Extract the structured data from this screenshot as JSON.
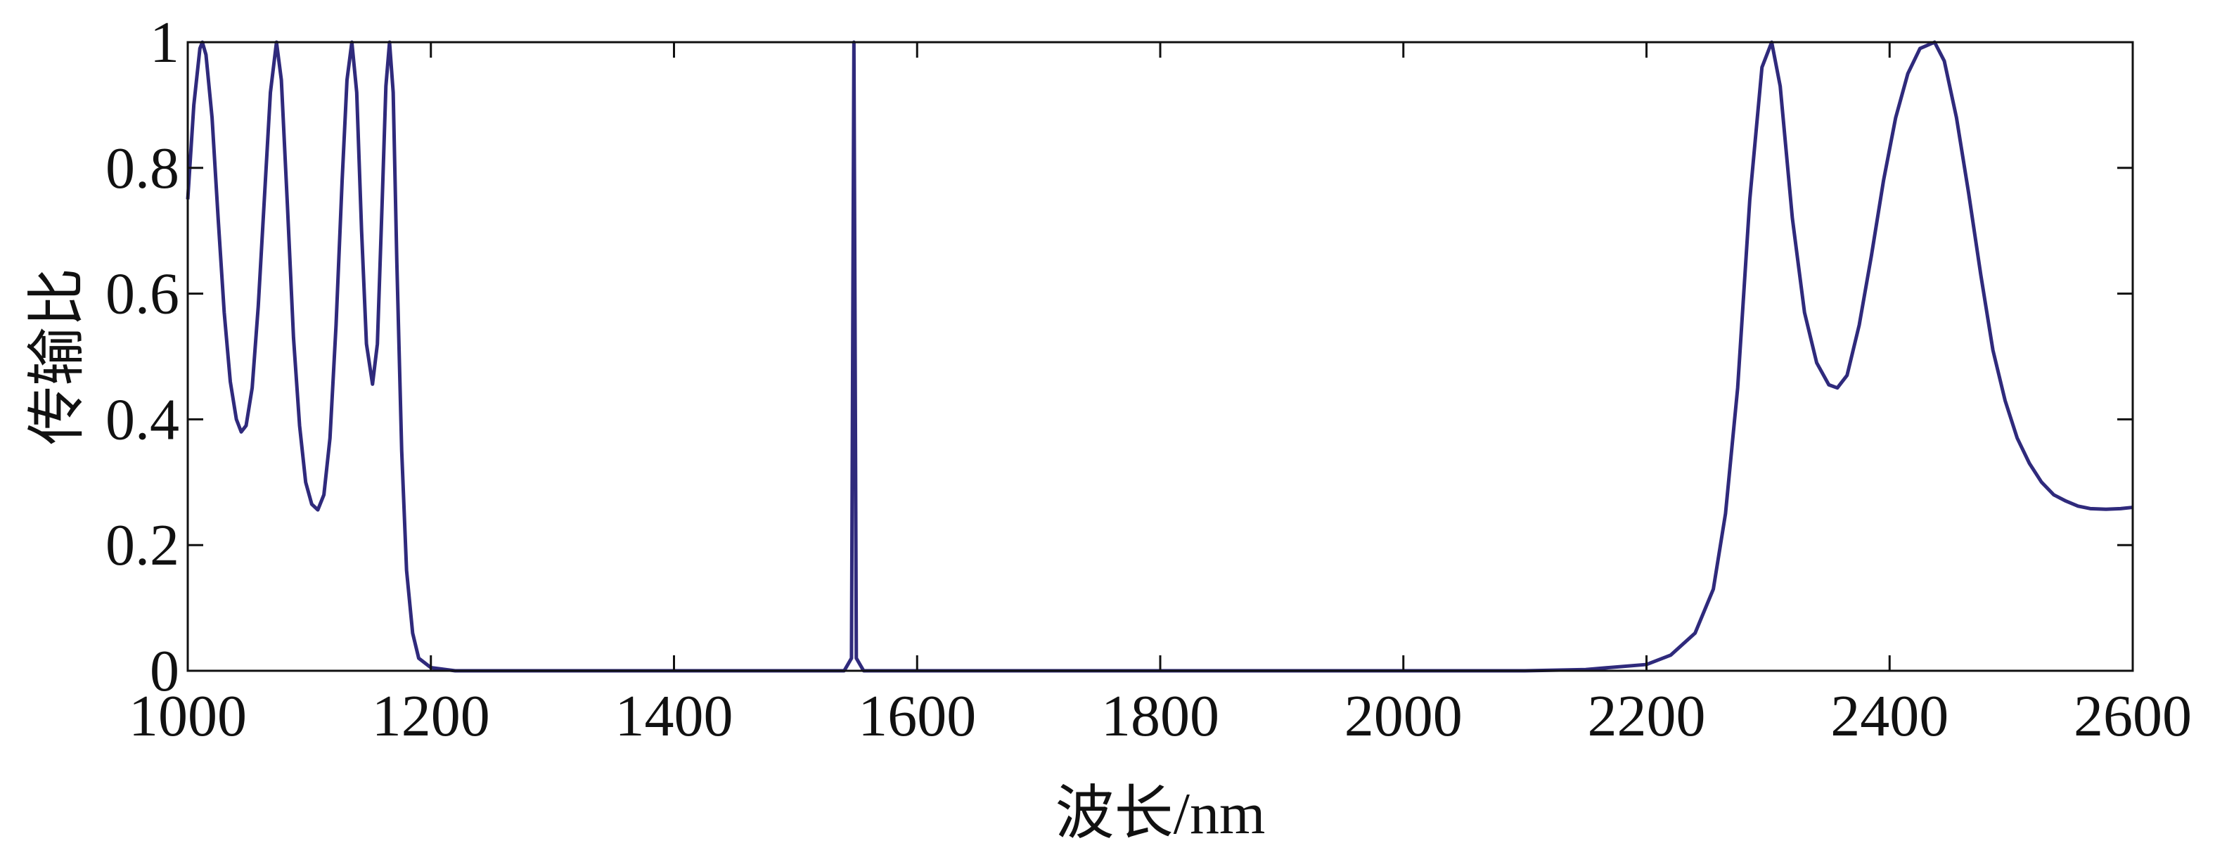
{
  "chart_data": {
    "type": "line",
    "xlabel": "波长/nm",
    "ylabel": "传输比",
    "xlim": [
      1000,
      2600
    ],
    "xticks": [
      1000,
      1200,
      1400,
      1600,
      1800,
      2000,
      2200,
      2400,
      2600
    ],
    "ylim": [
      0,
      1
    ],
    "yticks": [
      0,
      0.2,
      0.4,
      0.6,
      0.8,
      1
    ],
    "x": [
      1000,
      1005,
      1010,
      1012,
      1015,
      1020,
      1025,
      1030,
      1035,
      1040,
      1044,
      1048,
      1053,
      1058,
      1063,
      1068,
      1073,
      1077,
      1082,
      1087,
      1092,
      1097,
      1102,
      1107,
      1112,
      1117,
      1122,
      1127,
      1131,
      1135,
      1139,
      1143,
      1147,
      1152,
      1156,
      1160,
      1163,
      1166,
      1169,
      1172,
      1176,
      1180,
      1185,
      1190,
      1200,
      1220,
      1540,
      1546,
      1548,
      1550,
      1556,
      2100,
      2150,
      2200,
      2220,
      2240,
      2255,
      2265,
      2275,
      2285,
      2295,
      2303,
      2310,
      2320,
      2330,
      2340,
      2350,
      2357,
      2365,
      2375,
      2385,
      2395,
      2405,
      2415,
      2425,
      2437,
      2445,
      2455,
      2465,
      2475,
      2485,
      2495,
      2505,
      2515,
      2525,
      2535,
      2545,
      2555,
      2565,
      2578,
      2590,
      2600
    ],
    "series": [
      {
        "color": "#2f2a7c",
        "values": [
          0.75,
          0.9,
          0.99,
          1,
          0.98,
          0.88,
          0.72,
          0.57,
          0.46,
          0.4,
          0.38,
          0.39,
          0.45,
          0.58,
          0.75,
          0.92,
          1,
          0.94,
          0.74,
          0.53,
          0.39,
          0.3,
          0.265,
          0.256,
          0.28,
          0.37,
          0.55,
          0.78,
          0.94,
          1,
          0.92,
          0.7,
          0.52,
          0.456,
          0.52,
          0.75,
          0.93,
          1,
          0.92,
          0.65,
          0.35,
          0.16,
          0.06,
          0.02,
          0.005,
          0,
          0,
          0.02,
          1,
          0.02,
          0,
          0,
          0.002,
          0.01,
          0.025,
          0.06,
          0.13,
          0.25,
          0.45,
          0.75,
          0.96,
          1,
          0.93,
          0.72,
          0.57,
          0.49,
          0.455,
          0.45,
          0.47,
          0.55,
          0.66,
          0.78,
          0.88,
          0.95,
          0.99,
          1,
          0.97,
          0.88,
          0.76,
          0.63,
          0.51,
          0.43,
          0.37,
          0.33,
          0.3,
          0.28,
          0.27,
          0.262,
          0.258,
          0.257,
          0.258,
          0.26
        ]
      }
    ]
  }
}
